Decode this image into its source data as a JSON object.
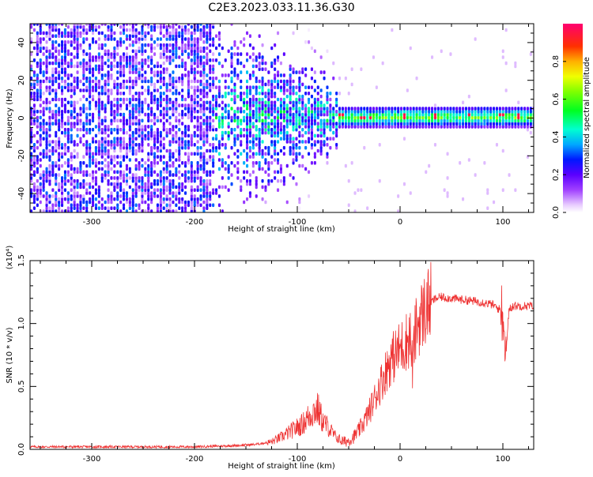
{
  "title": "C2E3.2023.033.11.36.G30",
  "chart_data": [
    {
      "type": "heatmap",
      "title": "C2E3.2023.033.11.36.G30",
      "xlabel": "Height of straight line (km)",
      "ylabel": "Frequency (Hz)",
      "xlim": [
        -360,
        130
      ],
      "ylim": [
        -50,
        50
      ],
      "xticks": [
        -300,
        -200,
        -100,
        0,
        100
      ],
      "xtick_labels": [
        "-300",
        "-200",
        "-100",
        "0",
        "100"
      ],
      "yticks": [
        -40,
        -20,
        0,
        20,
        40
      ],
      "ytick_labels": [
        "-40",
        "-20",
        "0",
        "20",
        "40"
      ],
      "colorbar": {
        "label": "Normalized spectral amplitude",
        "range": [
          0,
          1
        ],
        "ticks": [
          0.0,
          0.2,
          0.4,
          0.6,
          0.8
        ],
        "tick_labels": [
          "0.0",
          "0.2",
          "0.4",
          "0.6",
          "0.8"
        ],
        "colormap": "rainbow"
      },
      "features": [
        {
          "name": "noise field",
          "x_range": [
            -360,
            -180
          ],
          "freq_range": [
            -50,
            50
          ],
          "amplitude": 0.18
        },
        {
          "name": "fading band",
          "x_range": [
            -180,
            -60
          ],
          "freq_range": [
            -20,
            20
          ],
          "amplitude": 0.35
        },
        {
          "name": "signal line",
          "x_range": [
            -60,
            130
          ],
          "freq_center": 0,
          "amplitude": 0.6,
          "peak_amplitude": 0.95
        }
      ]
    },
    {
      "type": "line",
      "xlabel": "Height of straight line (km)",
      "ylabel": "SNR (10 * v/v)",
      "exponent_label": "(x10⁴)",
      "xlim": [
        -360,
        130
      ],
      "ylim": [
        0,
        1.5
      ],
      "xticks": [
        -300,
        -200,
        -100,
        0,
        100
      ],
      "xtick_labels": [
        "-300",
        "-200",
        "-100",
        "0",
        "100"
      ],
      "yticks": [
        0.0,
        0.5,
        1.0,
        1.5
      ],
      "ytick_labels": [
        "0.0",
        "0.5",
        "1.0",
        "1.5"
      ],
      "color": "#ee3333",
      "series": [
        {
          "name": "SNR",
          "x": [
            -360,
            -300,
            -250,
            -200,
            -160,
            -140,
            -125,
            -115,
            -105,
            -95,
            -90,
            -85,
            -80,
            -75,
            -70,
            -65,
            -60,
            -55,
            -50,
            -45,
            -40,
            -35,
            -30,
            -25,
            -20,
            -15,
            -10,
            -5,
            0,
            5,
            10,
            12,
            15,
            20,
            25,
            30,
            35,
            40,
            50,
            60,
            70,
            80,
            90,
            95,
            100,
            103,
            106,
            110,
            120,
            130
          ],
          "values": [
            0.02,
            0.02,
            0.02,
            0.02,
            0.03,
            0.04,
            0.06,
            0.1,
            0.15,
            0.2,
            0.25,
            0.3,
            0.32,
            0.22,
            0.18,
            0.12,
            0.08,
            0.06,
            0.07,
            0.1,
            0.15,
            0.22,
            0.3,
            0.4,
            0.5,
            0.6,
            0.7,
            0.75,
            0.8,
            0.85,
            0.9,
            0.65,
            0.95,
            1.05,
            1.12,
            1.17,
            1.2,
            1.21,
            1.2,
            1.19,
            1.18,
            1.17,
            1.15,
            1.12,
            1.1,
            0.75,
            1.12,
            1.14,
            1.14,
            1.14
          ]
        }
      ]
    }
  ]
}
